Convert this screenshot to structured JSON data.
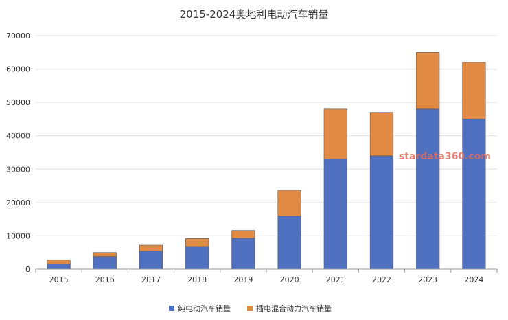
{
  "chart_data": {
    "type": "bar",
    "stacked": true,
    "title": "2015-2024奥地利电动汽车销量",
    "xlabel": "",
    "ylabel": "",
    "categories": [
      "2015",
      "2016",
      "2017",
      "2018",
      "2019",
      "2020",
      "2021",
      "2022",
      "2023",
      "2024"
    ],
    "ylim": [
      0,
      70000
    ],
    "yticks": [
      "0",
      "10000",
      "20000",
      "30000",
      "40000",
      "50000",
      "60000",
      "70000"
    ],
    "grid": true,
    "legend_position": "bottom",
    "series": [
      {
        "name": "纯电动汽车销量",
        "color": "#4f6fbf",
        "values": [
          1600,
          3800,
          5400,
          6800,
          9300,
          15900,
          33000,
          34000,
          48000,
          45000
        ]
      },
      {
        "name": "插电混合动力汽车销量",
        "color": "#e08a44",
        "values": [
          1200,
          1200,
          1800,
          2400,
          2300,
          7800,
          15000,
          13000,
          17000,
          17000
        ]
      }
    ],
    "watermark": "stardata360.com"
  }
}
